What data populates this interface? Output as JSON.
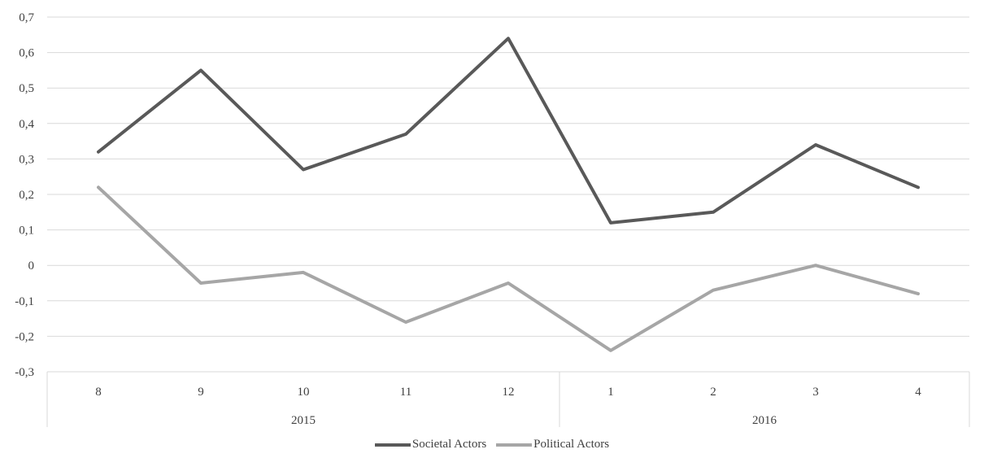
{
  "chart_data": {
    "type": "line",
    "categories": [
      "8",
      "9",
      "10",
      "11",
      "12",
      "1",
      "2",
      "3",
      "4"
    ],
    "groups": [
      {
        "label": "2015",
        "categories": [
          "8",
          "9",
          "10",
          "11",
          "12"
        ]
      },
      {
        "label": "2016",
        "categories": [
          "1",
          "2",
          "3",
          "4"
        ]
      }
    ],
    "series": [
      {
        "name": "Societal Actors",
        "color": "#595959",
        "values": [
          0.32,
          0.55,
          0.27,
          0.37,
          0.64,
          0.12,
          0.15,
          0.34,
          0.22
        ]
      },
      {
        "name": "Political Actors",
        "color": "#a6a6a6",
        "values": [
          0.22,
          -0.05,
          -0.02,
          -0.16,
          -0.05,
          -0.24,
          -0.07,
          0.0,
          -0.08
        ]
      }
    ],
    "ylim": [
      -0.3,
      0.7
    ],
    "yticks": [
      "0,7",
      "0,6",
      "0,5",
      "0,4",
      "0,3",
      "0,2",
      "0,1",
      "0",
      "-0,1",
      "-0,2",
      "-0,3"
    ],
    "title": "",
    "xlabel": "",
    "ylabel": "",
    "grid": true,
    "legend_position": "bottom"
  }
}
